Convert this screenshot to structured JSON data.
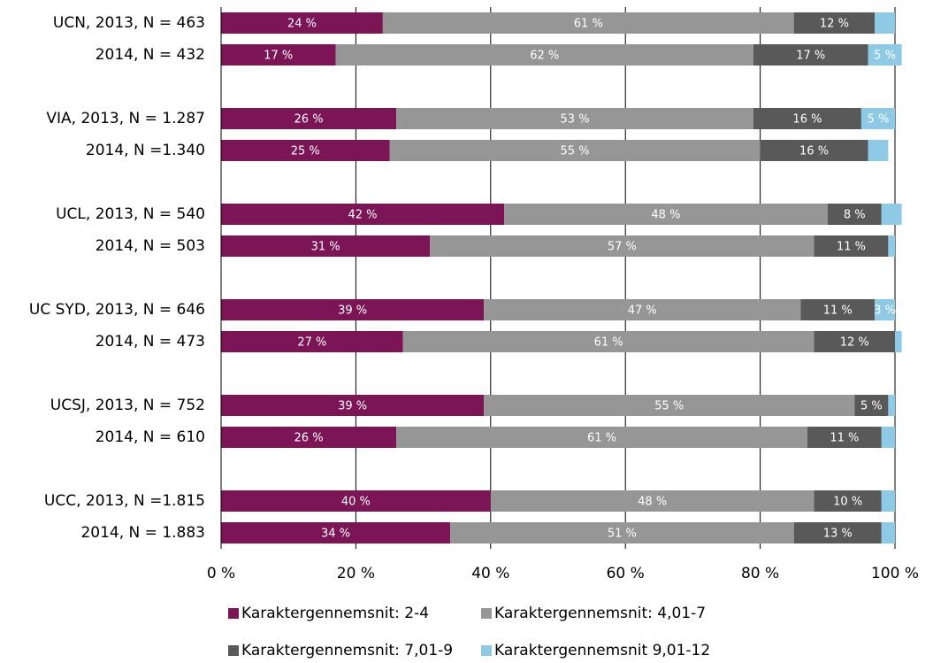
{
  "chart_data": {
    "type": "stacked-bar-horizontal",
    "categories": [
      "UCN, 2013, N = 463",
      "2014, N = 432",
      null,
      "VIA, 2013, N = 1.287",
      "2014, N =1.340",
      null,
      "UCL, 2013, N = 540",
      "2014, N = 503",
      null,
      "UC SYD, 2013, N = 646",
      "2014, N = 473",
      null,
      "UCSJ, 2013, N = 752",
      "2014, N = 610",
      null,
      "UCC, 2013, N =1.815",
      "2014, N = 1.883"
    ],
    "series": [
      {
        "name": "Karaktergennemsnit: 2-4",
        "color": "#7b1555",
        "values": [
          24,
          17,
          null,
          26,
          25,
          null,
          42,
          31,
          null,
          39,
          27,
          null,
          39,
          26,
          null,
          40,
          34
        ],
        "value_labels": [
          "24 %",
          "17 %",
          null,
          "26 %",
          "25 %",
          null,
          "42 %",
          "31 %",
          null,
          "39 %",
          "27 %",
          null,
          "39 %",
          "26 %",
          null,
          "40 %",
          "34 %"
        ]
      },
      {
        "name": "Karaktergennemsnit: 4,01-7",
        "color": "#969696",
        "values": [
          61,
          62,
          null,
          53,
          55,
          null,
          48,
          57,
          null,
          47,
          61,
          null,
          55,
          61,
          null,
          48,
          51
        ],
        "value_labels": [
          "61 %",
          "62 %",
          null,
          "53 %",
          "55 %",
          null,
          "48 %",
          "57 %",
          null,
          "47 %",
          "61 %",
          null,
          "55 %",
          "61 %",
          null,
          "48 %",
          "51 %"
        ]
      },
      {
        "name": "Karaktergennemsnit: 7,01-9",
        "color": "#595959",
        "values": [
          12,
          17,
          null,
          16,
          16,
          null,
          8,
          11,
          null,
          11,
          12,
          null,
          5,
          11,
          null,
          10,
          13
        ],
        "value_labels": [
          "12 %",
          "17 %",
          null,
          "16 %",
          "16 %",
          null,
          "8 %",
          "11 %",
          null,
          "11 %",
          "12 %",
          null,
          "5 %",
          "11 %",
          null,
          "10 %",
          "13 %"
        ]
      },
      {
        "name": "Karaktergennemsnit 9,01-12",
        "color": "#8ec9e6",
        "values": [
          3,
          5,
          null,
          5,
          3,
          null,
          3,
          1,
          null,
          3,
          1,
          null,
          1,
          2,
          null,
          2,
          2
        ],
        "value_labels": [
          null,
          "5 %",
          null,
          "5 %",
          null,
          null,
          null,
          null,
          null,
          "3 %",
          null,
          null,
          null,
          null,
          null,
          null,
          null
        ]
      }
    ],
    "xlim": [
      0,
      100
    ],
    "xticks": [
      {
        "value": 0,
        "label": "0 %"
      },
      {
        "value": 20,
        "label": "20 %"
      },
      {
        "value": 40,
        "label": "40 %"
      },
      {
        "value": 60,
        "label": "60 %"
      },
      {
        "value": 80,
        "label": "80 %"
      },
      {
        "value": 100,
        "label": "100 %"
      }
    ],
    "grid": true,
    "legend": "bottom"
  }
}
